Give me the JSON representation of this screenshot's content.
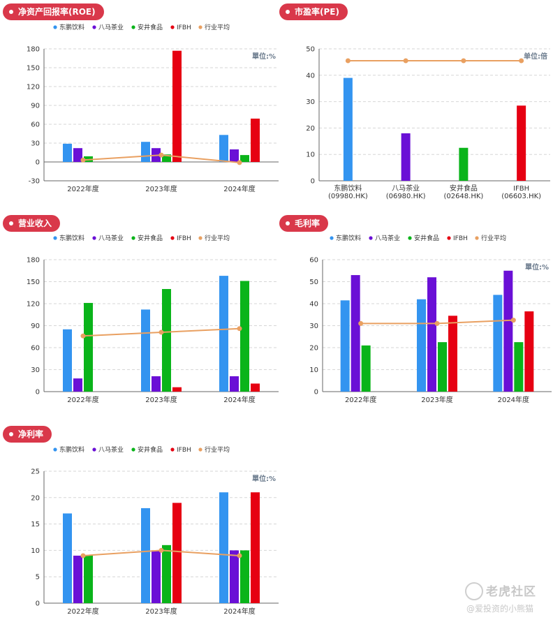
{
  "colors": {
    "dongpeng": "#3394f0",
    "bama": "#6a10d6",
    "anjing": "#0ab41a",
    "ifbh": "#e60012",
    "avg": "#e9a061"
  },
  "legend": [
    "东鹏饮料",
    "八马茶业",
    "安井食品",
    "IFBH",
    "行业平均"
  ],
  "watermark": {
    "title": "老虎社区",
    "sub": "@爱投资的小熊猫"
  },
  "chart_data": [
    {
      "id": "roe",
      "type": "bar",
      "badge": "净资产回报率(ROE)",
      "unit": "單位:%",
      "categories": [
        "2022年度",
        "2023年度",
        "2024年度"
      ],
      "series": [
        {
          "name": "东鹏饮料",
          "values": [
            29,
            32,
            43
          ]
        },
        {
          "name": "八马茶业",
          "values": [
            22,
            22,
            20
          ]
        },
        {
          "name": "安井食品",
          "values": [
            9,
            12,
            11
          ]
        },
        {
          "name": "IFBH",
          "values": [
            null,
            177,
            69
          ]
        }
      ],
      "avg": {
        "name": "行业平均",
        "values": [
          3,
          11,
          -1
        ]
      },
      "yticks": [
        -30,
        0,
        30,
        60,
        90,
        120,
        150,
        180
      ],
      "ylim": [
        -30,
        180
      ]
    },
    {
      "id": "pe",
      "type": "bar",
      "badge": "市盈率(PE)",
      "unit": "单位:倍",
      "categories": [
        "东鹏饮料\n(09980.HK)",
        "八马茶业\n(06980.HK)",
        "安井食品\n(02648.HK)",
        "IFBH\n(06603.HK)"
      ],
      "values": [
        39,
        18,
        12.5,
        28.5
      ],
      "avg": {
        "name": "行业平均",
        "values": [
          45.5,
          45.5,
          45.5,
          45.5
        ]
      },
      "yticks": [
        0,
        10,
        20,
        30,
        40,
        50
      ],
      "ylim": [
        0,
        50
      ]
    },
    {
      "id": "revenue",
      "type": "bar",
      "badge": "营业收入",
      "unit": "",
      "categories": [
        "2022年度",
        "2023年度",
        "2024年度"
      ],
      "series": [
        {
          "name": "东鹏饮料",
          "values": [
            85,
            112,
            158
          ]
        },
        {
          "name": "八马茶业",
          "values": [
            18,
            21,
            21
          ]
        },
        {
          "name": "安井食品",
          "values": [
            121,
            140,
            151
          ]
        },
        {
          "name": "IFBH",
          "values": [
            null,
            6,
            11
          ]
        }
      ],
      "avg": {
        "name": "行业平均",
        "values": [
          76,
          81,
          86
        ]
      },
      "yticks": [
        0,
        30,
        60,
        90,
        120,
        150,
        180
      ],
      "ylim": [
        0,
        180
      ]
    },
    {
      "id": "gross",
      "type": "bar",
      "badge": "毛利率",
      "unit": "單位:%",
      "categories": [
        "2022年度",
        "2023年度",
        "2024年度"
      ],
      "series": [
        {
          "name": "东鹏饮料",
          "values": [
            41.5,
            42,
            44
          ]
        },
        {
          "name": "八马茶业",
          "values": [
            53,
            52,
            55
          ]
        },
        {
          "name": "安井食品",
          "values": [
            21,
            22.5,
            22.5
          ]
        },
        {
          "name": "IFBH",
          "values": [
            null,
            34.5,
            36.5
          ]
        }
      ],
      "avg": {
        "name": "行业平均",
        "values": [
          31,
          31,
          32.5
        ]
      },
      "yticks": [
        0,
        10,
        20,
        30,
        40,
        50,
        60
      ],
      "ylim": [
        0,
        60
      ]
    },
    {
      "id": "net",
      "type": "bar",
      "badge": "净利率",
      "unit": "單位:%",
      "categories": [
        "2022年度",
        "2023年度",
        "2024年度"
      ],
      "series": [
        {
          "name": "东鹏饮料",
          "values": [
            17,
            18,
            21
          ]
        },
        {
          "name": "八马茶业",
          "values": [
            9,
            10,
            10
          ]
        },
        {
          "name": "安井食品",
          "values": [
            9,
            11,
            10
          ]
        },
        {
          "name": "IFBH",
          "values": [
            null,
            19,
            21
          ]
        }
      ],
      "avg": {
        "name": "行业平均",
        "values": [
          9,
          10,
          9
        ]
      },
      "yticks": [
        0,
        5,
        10,
        15,
        20,
        25
      ],
      "ylim": [
        0,
        25
      ]
    }
  ]
}
